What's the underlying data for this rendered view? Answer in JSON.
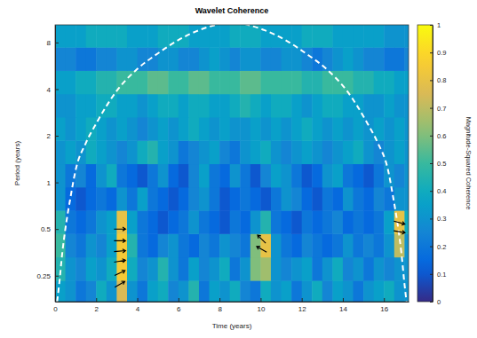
{
  "chart_data": {
    "type": "heatmap",
    "title": "Wavelet Coherence",
    "xlabel": "Time (years)",
    "ylabel": "Period (years)",
    "colorbar_label": "Magnitude-Squared Coherence",
    "log": "y",
    "xlim": [
      0,
      17.2
    ],
    "xticks": [
      0,
      2,
      4,
      6,
      8,
      10,
      12,
      14,
      16
    ],
    "ylim": [
      0.17,
      10.4
    ],
    "yticks": [
      0.25,
      0.5,
      1,
      2,
      4,
      8
    ],
    "zlim": [
      0,
      1
    ],
    "zticks": [
      0,
      0.1,
      0.2,
      0.3,
      0.4,
      0.5,
      0.6,
      0.7,
      0.8,
      0.9,
      1
    ],
    "x_edges": [
      0,
      0.5,
      1,
      1.5,
      2,
      2.5,
      3,
      3.5,
      4,
      4.5,
      5,
      5.5,
      6,
      6.5,
      7,
      7.5,
      8,
      8.5,
      9,
      9.5,
      10,
      10.5,
      11,
      11.5,
      12,
      12.5,
      13,
      13.5,
      14,
      14.5,
      15,
      15.5,
      16,
      16.5,
      17,
      17.5
    ],
    "y_edges": [
      0.165,
      0.233,
      0.33,
      0.467,
      0.66,
      0.933,
      1.32,
      1.866,
      2.639,
      3.732,
      5.278,
      7.464,
      10.556
    ],
    "z": [
      [
        0.35,
        0.3,
        0.2,
        0.25,
        0.4,
        0.3,
        0.75,
        0.3,
        0.2,
        0.35,
        0.4,
        0.25,
        0.3,
        0.45,
        0.2,
        0.35,
        0.3,
        0.4,
        0.25,
        0.2,
        0.4,
        0.3,
        0.35,
        0.2,
        0.3,
        0.4,
        0.25,
        0.35,
        0.3,
        0.2,
        0.3,
        0.35,
        0.4,
        0.3,
        0.3
      ],
      [
        0.45,
        0.3,
        0.25,
        0.35,
        0.3,
        0.4,
        0.85,
        0.4,
        0.25,
        0.3,
        0.45,
        0.3,
        0.2,
        0.35,
        0.25,
        0.3,
        0.4,
        0.2,
        0.3,
        0.6,
        0.65,
        0.3,
        0.25,
        0.3,
        0.35,
        0.2,
        0.3,
        0.4,
        0.25,
        0.3,
        0.2,
        0.3,
        0.25,
        0.3,
        0.3
      ],
      [
        0.5,
        0.25,
        0.2,
        0.3,
        0.25,
        0.35,
        0.85,
        0.45,
        0.2,
        0.15,
        0.25,
        0.3,
        0.2,
        0.15,
        0.25,
        0.2,
        0.3,
        0.25,
        0.2,
        0.6,
        0.8,
        0.3,
        0.2,
        0.15,
        0.25,
        0.2,
        0.15,
        0.2,
        0.3,
        0.2,
        0.25,
        0.2,
        0.3,
        0.7,
        0.3
      ],
      [
        0.45,
        0.2,
        0.15,
        0.2,
        0.3,
        0.35,
        0.8,
        0.35,
        0.2,
        0.15,
        0.1,
        0.15,
        0.2,
        0.3,
        0.2,
        0.15,
        0.1,
        0.2,
        0.15,
        0.3,
        0.45,
        0.2,
        0.15,
        0.1,
        0.2,
        0.15,
        0.2,
        0.25,
        0.15,
        0.2,
        0.15,
        0.2,
        0.35,
        0.8,
        0.4
      ],
      [
        0.3,
        0.15,
        0.1,
        0.15,
        0.2,
        0.15,
        0.3,
        0.2,
        0.35,
        0.2,
        0.15,
        0.1,
        0.15,
        0.25,
        0.3,
        0.2,
        0.1,
        0.15,
        0.2,
        0.15,
        0.1,
        0.2,
        0.3,
        0.25,
        0.15,
        0.1,
        0.2,
        0.15,
        0.3,
        0.2,
        0.15,
        0.25,
        0.2,
        0.3,
        0.3
      ],
      [
        0.3,
        0.2,
        0.25,
        0.15,
        0.3,
        0.4,
        0.2,
        0.15,
        0.1,
        0.2,
        0.3,
        0.15,
        0.1,
        0.25,
        0.35,
        0.2,
        0.15,
        0.3,
        0.2,
        0.1,
        0.25,
        0.35,
        0.3,
        0.2,
        0.1,
        0.15,
        0.3,
        0.35,
        0.2,
        0.15,
        0.1,
        0.2,
        0.3,
        0.25,
        0.3
      ],
      [
        0.3,
        0.35,
        0.3,
        0.4,
        0.35,
        0.3,
        0.25,
        0.3,
        0.4,
        0.45,
        0.35,
        0.3,
        0.2,
        0.25,
        0.3,
        0.35,
        0.25,
        0.2,
        0.3,
        0.35,
        0.4,
        0.3,
        0.25,
        0.3,
        0.35,
        0.3,
        0.25,
        0.3,
        0.35,
        0.4,
        0.3,
        0.25,
        0.3,
        0.35,
        0.3
      ],
      [
        0.35,
        0.3,
        0.35,
        0.4,
        0.35,
        0.3,
        0.35,
        0.3,
        0.25,
        0.3,
        0.35,
        0.3,
        0.35,
        0.4,
        0.35,
        0.3,
        0.35,
        0.3,
        0.3,
        0.35,
        0.3,
        0.35,
        0.3,
        0.35,
        0.4,
        0.35,
        0.3,
        0.35,
        0.3,
        0.35,
        0.3,
        0.35,
        0.3,
        0.35,
        0.3
      ],
      [
        0.3,
        0.3,
        0.35,
        0.35,
        0.4,
        0.4,
        0.35,
        0.35,
        0.3,
        0.35,
        0.4,
        0.4,
        0.35,
        0.4,
        0.4,
        0.35,
        0.35,
        0.4,
        0.45,
        0.4,
        0.35,
        0.4,
        0.4,
        0.35,
        0.3,
        0.35,
        0.4,
        0.4,
        0.35,
        0.35,
        0.3,
        0.3,
        0.35,
        0.3,
        0.3
      ],
      [
        0.35,
        0.35,
        0.4,
        0.4,
        0.45,
        0.45,
        0.5,
        0.5,
        0.5,
        0.55,
        0.55,
        0.5,
        0.5,
        0.55,
        0.55,
        0.5,
        0.5,
        0.5,
        0.55,
        0.55,
        0.5,
        0.5,
        0.5,
        0.5,
        0.45,
        0.45,
        0.5,
        0.5,
        0.5,
        0.45,
        0.45,
        0.4,
        0.4,
        0.35,
        0.35
      ],
      [
        0.25,
        0.25,
        0.2,
        0.2,
        0.25,
        0.25,
        0.3,
        0.3,
        0.25,
        0.25,
        0.3,
        0.3,
        0.25,
        0.25,
        0.3,
        0.35,
        0.3,
        0.25,
        0.3,
        0.3,
        0.25,
        0.25,
        0.3,
        0.3,
        0.25,
        0.2,
        0.25,
        0.3,
        0.35,
        0.3,
        0.25,
        0.25,
        0.2,
        0.2,
        0.25
      ],
      [
        0.35,
        0.35,
        0.35,
        0.4,
        0.4,
        0.4,
        0.4,
        0.35,
        0.35,
        0.35,
        0.4,
        0.4,
        0.4,
        0.35,
        0.35,
        0.35,
        0.35,
        0.4,
        0.4,
        0.4,
        0.35,
        0.35,
        0.35,
        0.35,
        0.4,
        0.4,
        0.4,
        0.35,
        0.35,
        0.35,
        0.35,
        0.35,
        0.3,
        0.3,
        0.3
      ]
    ],
    "coi": {
      "x": [
        0.1,
        0.2,
        0.35,
        0.5,
        0.75,
        1,
        1.5,
        2,
        3,
        4,
        5,
        6,
        7,
        7.7,
        8.6,
        9.5,
        10.2,
        11.2,
        12.2,
        13.2,
        14.2,
        15.2,
        15.7,
        16.2,
        16.45,
        16.7,
        16.85,
        17.0,
        17.1
      ],
      "period": [
        0.17,
        0.22,
        0.35,
        0.5,
        0.8,
        1.2,
        1.8,
        2.4,
        3.9,
        5.4,
        6.8,
        8.3,
        9.6,
        10.3,
        10.9,
        10.3,
        9.6,
        8.3,
        6.8,
        5.4,
        3.9,
        2.4,
        1.8,
        1.2,
        0.8,
        0.5,
        0.35,
        0.22,
        0.17
      ]
    },
    "arrows": [
      {
        "x": 3.15,
        "period": 0.5,
        "phase": 0
      },
      {
        "x": 3.15,
        "period": 0.42,
        "phase": 0
      },
      {
        "x": 3.15,
        "period": 0.36,
        "phase": 5
      },
      {
        "x": 3.15,
        "period": 0.31,
        "phase": 10
      },
      {
        "x": 3.15,
        "period": 0.26,
        "phase": 25
      },
      {
        "x": 3.15,
        "period": 0.22,
        "phase": 30
      },
      {
        "x": 10.05,
        "period": 0.43,
        "phase": 135
      },
      {
        "x": 10.05,
        "period": 0.37,
        "phase": 150
      },
      {
        "x": 16.75,
        "period": 0.55,
        "phase": -15
      },
      {
        "x": 16.75,
        "period": 0.48,
        "phase": -10
      }
    ]
  }
}
